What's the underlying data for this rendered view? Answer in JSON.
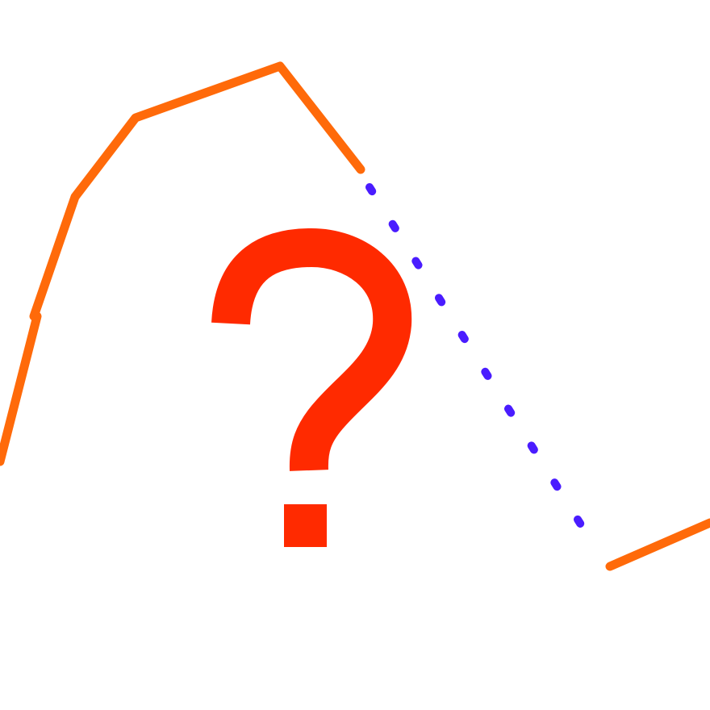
{
  "puzzle": {
    "symbol": "?",
    "colors": {
      "known_segments": "#ff6a0a",
      "missing_segment": "#4a1cff",
      "question_mark": "#ff2a00",
      "background": "#ffffff"
    }
  }
}
